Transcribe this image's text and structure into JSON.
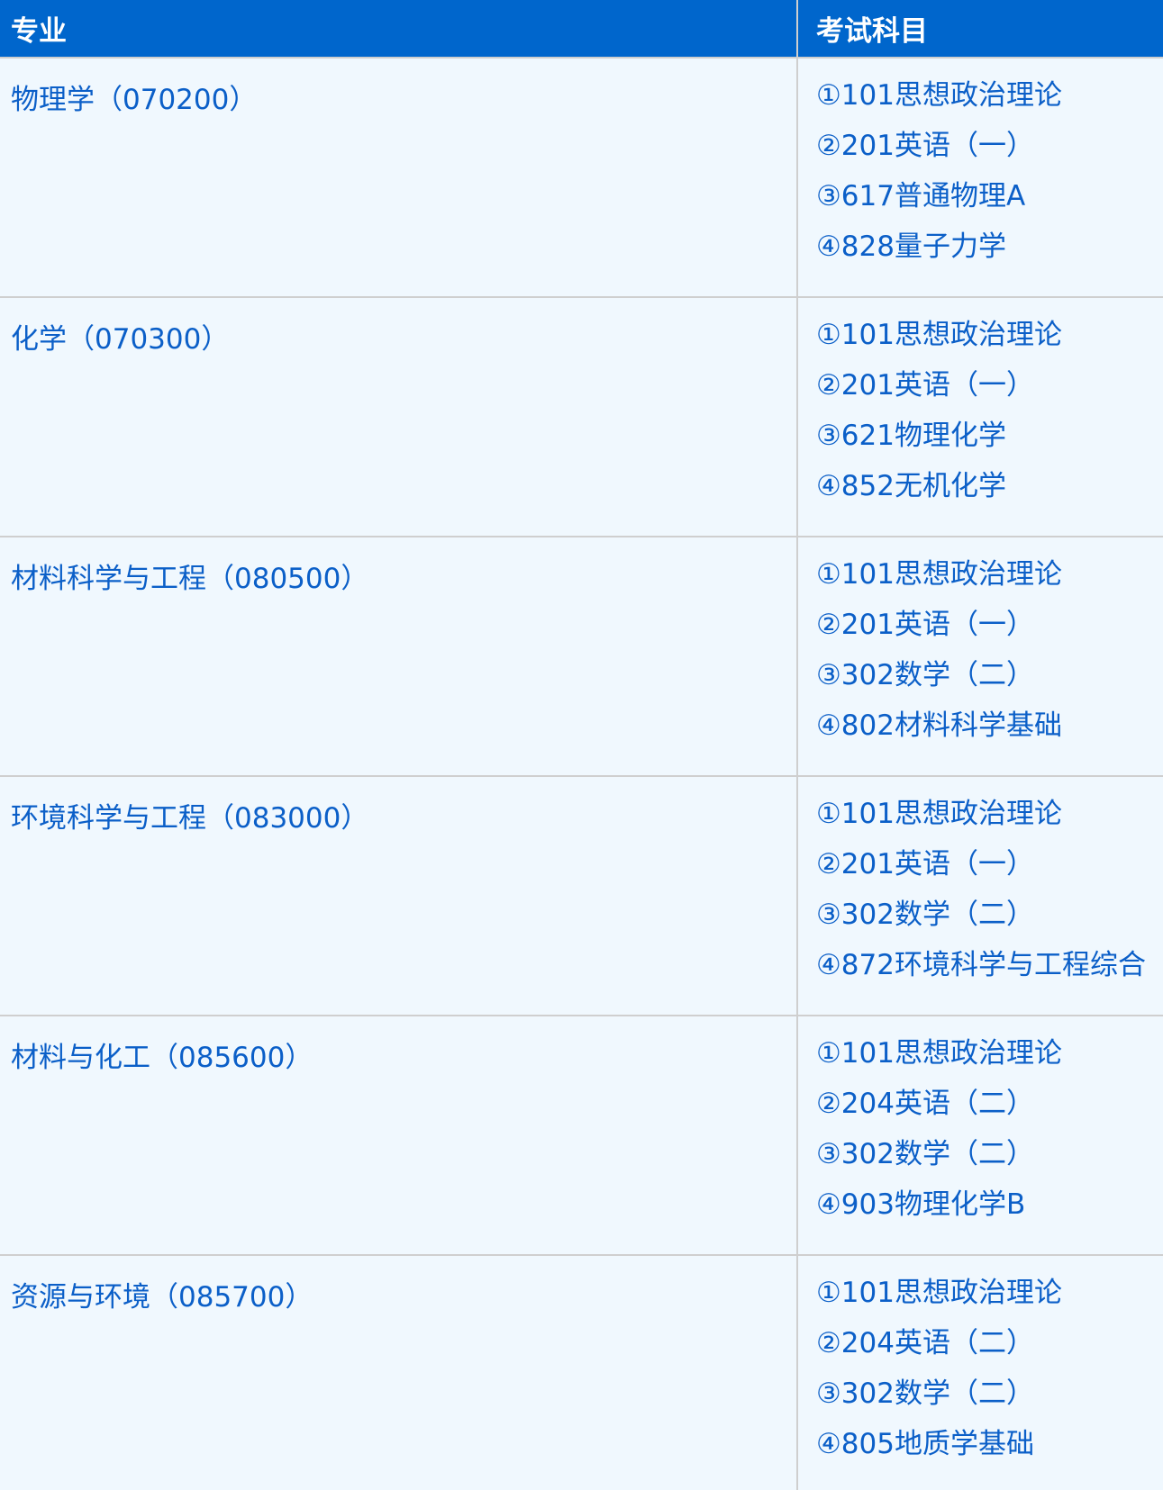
{
  "header": {
    "major": "专业",
    "subjects": "考试科目"
  },
  "rows": [
    {
      "major": "物理学（070200）",
      "subjects": [
        "①101思想政治理论",
        "②201英语（一）",
        "③617普通物理A",
        "④828量子力学"
      ]
    },
    {
      "major": "化学（070300）",
      "subjects": [
        "①101思想政治理论",
        "②201英语（一）",
        "③621物理化学",
        "④852无机化学"
      ]
    },
    {
      "major": "材料科学与工程（080500）",
      "subjects": [
        "①101思想政治理论",
        "②201英语（一）",
        "③302数学（二）",
        "④802材料科学基础"
      ]
    },
    {
      "major": "环境科学与工程（083000）",
      "subjects": [
        "①101思想政治理论",
        "②201英语（一）",
        "③302数学（二）",
        "④872环境科学与工程综合"
      ]
    },
    {
      "major": "材料与化工（085600）",
      "subjects": [
        "①101思想政治理论",
        "②204英语（二）",
        "③302数学（二）",
        "④903物理化学B"
      ]
    },
    {
      "major": "资源与环境（085700）",
      "subjects": [
        "①101思想政治理论",
        "②204英语（二）",
        "③302数学（二）",
        "④805地质学基础"
      ]
    }
  ],
  "colors": {
    "header_bg": "#0066cc",
    "text": "#0b5fc8",
    "row_bg": "#f0f8fe",
    "border": "#cfcfcf"
  }
}
